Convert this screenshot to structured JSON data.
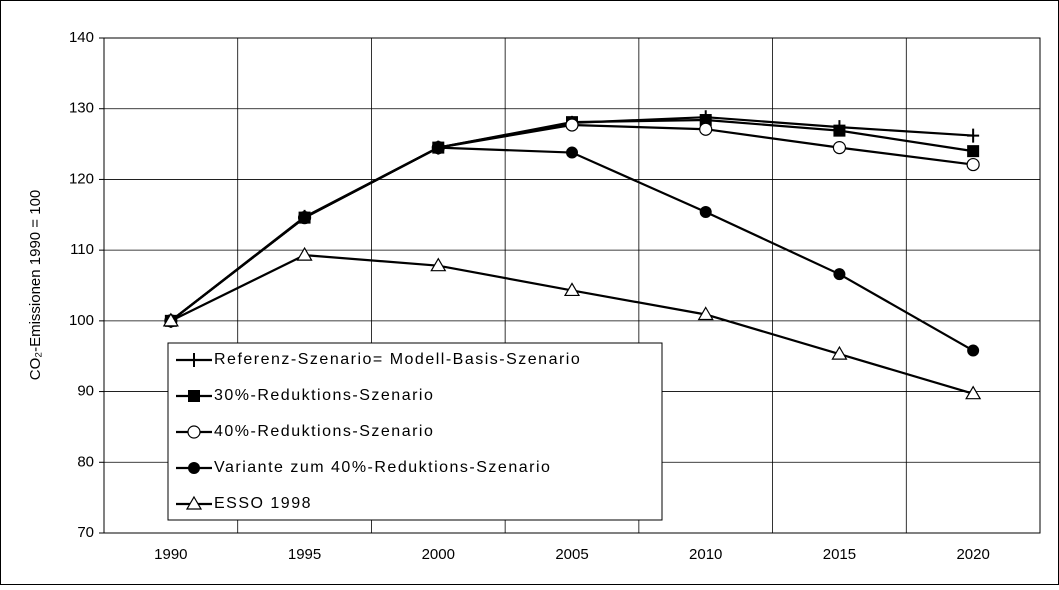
{
  "chart_data": {
    "type": "line",
    "y_label": "CO₂-Emissionen 1990 = 100",
    "categories": [
      "1990",
      "1995",
      "2000",
      "2005",
      "2010",
      "2015",
      "2020"
    ],
    "series": [
      {
        "name": "Referenz-Szenario= Modell-Basis-Szenario",
        "color": "#000000",
        "marker": "plus",
        "values": [
          100,
          114.7,
          124.5,
          128.0,
          128.8,
          127.4,
          126.2
        ]
      },
      {
        "name": "30%-Reduktions-Szenario",
        "color": "#000000",
        "marker": "square",
        "values": [
          100,
          114.6,
          124.5,
          128.1,
          128.4,
          126.9,
          124.0
        ]
      },
      {
        "name": "40%-Reduktions-Szenario",
        "color": "#000000",
        "marker": "open-circle",
        "values": [
          100,
          114.6,
          124.5,
          127.7,
          127.1,
          124.5,
          122.1
        ]
      },
      {
        "name": "Variante zum 40%-Reduktions-Szenario",
        "color": "#000000",
        "marker": "circle",
        "values": [
          100,
          114.6,
          124.5,
          123.8,
          115.4,
          106.6,
          95.8
        ]
      },
      {
        "name": "ESSO 1998",
        "color": "#000000",
        "marker": "open-triangle",
        "values": [
          100,
          109.3,
          107.8,
          104.3,
          100.9,
          95.3,
          89.7
        ]
      }
    ],
    "ylim": [
      70,
      140
    ],
    "yticks": [
      70,
      80,
      90,
      100,
      110,
      120,
      130,
      140
    ],
    "grid": true,
    "legend": "bottom-left"
  }
}
